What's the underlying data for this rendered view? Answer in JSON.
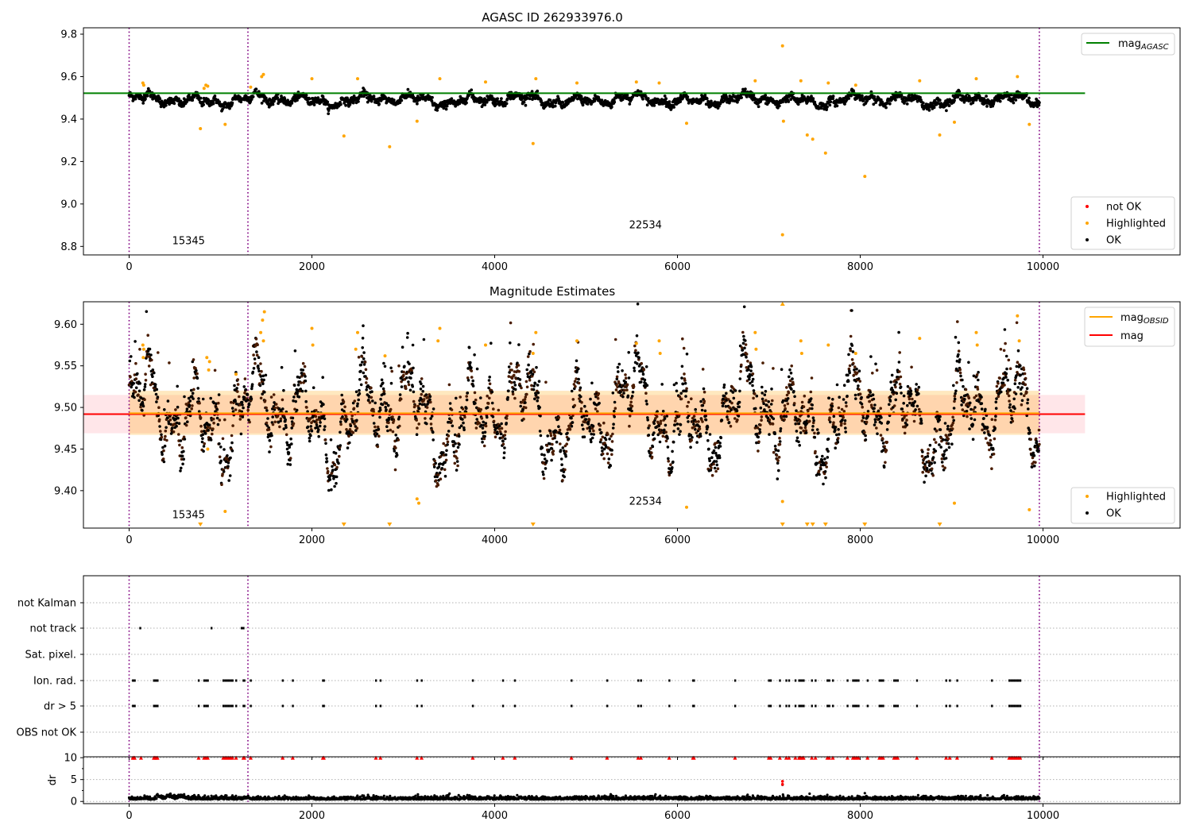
{
  "chart_data": [
    {
      "type": "scatter",
      "title": "AGASC ID 262933976.0",
      "xlim": [
        -500,
        11500
      ],
      "ylim": [
        8.76,
        9.83
      ],
      "x_ticks": [
        "0",
        "2000",
        "4000",
        "6000",
        "8000",
        "10000"
      ],
      "y_ticks": [
        "8.8",
        "9.0",
        "9.2",
        "9.4",
        "9.6",
        "9.8"
      ],
      "obsid_boundaries": [
        0,
        1300,
        9960
      ],
      "obsid_labels": [
        {
          "text": "15345",
          "x": 650,
          "y": 8.81
        },
        {
          "text": "22534",
          "x": 5650,
          "y": 8.885
        }
      ],
      "reference_line": {
        "name": "mag_AGASC",
        "y": 9.522,
        "x_range": [
          -500,
          10460
        ],
        "color": "#008000"
      },
      "series": [
        {
          "name": "not OK",
          "color": "#ff0000",
          "count": 0
        },
        {
          "name": "Highlighted",
          "color": "#ffa500",
          "points": [
            [
              150,
              9.57
            ],
            [
              160,
              9.56
            ],
            [
              780,
              9.355
            ],
            [
              820,
              9.545
            ],
            [
              840,
              9.56
            ],
            [
              860,
              9.555
            ],
            [
              1050,
              9.375
            ],
            [
              1330,
              9.55
            ],
            [
              1450,
              9.6
            ],
            [
              1470,
              9.61
            ],
            [
              2000,
              9.59
            ],
            [
              2350,
              9.32
            ],
            [
              2500,
              9.59
            ],
            [
              2850,
              9.27
            ],
            [
              3150,
              9.39
            ],
            [
              3400,
              9.59
            ],
            [
              3900,
              9.575
            ],
            [
              4420,
              9.285
            ],
            [
              4450,
              9.59
            ],
            [
              4900,
              9.57
            ],
            [
              5550,
              9.575
            ],
            [
              5800,
              9.57
            ],
            [
              6100,
              9.38
            ],
            [
              6850,
              9.58
            ],
            [
              7150,
              9.745
            ],
            [
              7150,
              8.855
            ],
            [
              7160,
              9.39
            ],
            [
              7350,
              9.58
            ],
            [
              7420,
              9.325
            ],
            [
              7480,
              9.305
            ],
            [
              7620,
              9.24
            ],
            [
              7650,
              9.57
            ],
            [
              7950,
              9.56
            ],
            [
              8050,
              9.13
            ],
            [
              8650,
              9.58
            ],
            [
              8870,
              9.325
            ],
            [
              9030,
              9.385
            ],
            [
              9270,
              9.59
            ],
            [
              9720,
              9.6
            ],
            [
              9850,
              9.375
            ]
          ]
        },
        {
          "name": "OK",
          "color": "#000000",
          "x_range": [
            0,
            9960
          ],
          "y_center": 9.49,
          "y_spread": 0.04
        }
      ],
      "legends": [
        {
          "position": "upper right",
          "entries": [
            "mag_AGASC"
          ]
        },
        {
          "position": "lower right",
          "entries": [
            "not OK",
            "Highlighted",
            "OK"
          ]
        }
      ]
    },
    {
      "type": "scatter",
      "title": "Magnitude Estimates",
      "xlim": [
        -500,
        11500
      ],
      "ylim": [
        9.355,
        9.627
      ],
      "x_ticks": [
        "0",
        "2000",
        "4000",
        "6000",
        "8000",
        "10000"
      ],
      "y_ticks": [
        "9.40",
        "9.45",
        "9.50",
        "9.55",
        "9.60"
      ],
      "obsid_boundaries": [
        0,
        1300,
        9960
      ],
      "obsid_labels": [
        {
          "text": "15345",
          "x": 650,
          "y": 9.367
        },
        {
          "text": "22534",
          "x": 5650,
          "y": 9.383
        }
      ],
      "bands": [
        {
          "y_range": [
            9.469,
            9.515
          ],
          "x_range": [
            -500,
            10460
          ],
          "color": "#ffb6c1",
          "opacity": 0.35
        },
        {
          "y_range": [
            9.467,
            9.52
          ],
          "x_range": [
            0,
            9960
          ],
          "color": "#ffa500",
          "opacity": 0.25
        }
      ],
      "reference_lines": [
        {
          "name": "mag",
          "y": 9.492,
          "x_range": [
            -500,
            10460
          ],
          "color": "#ff0000"
        },
        {
          "name": "mag_OBSID",
          "segments": [
            [
              0,
              1300,
              9.493
            ],
            [
              1300,
              9960,
              9.493
            ]
          ],
          "color": "#ffa500"
        }
      ],
      "series": [
        {
          "name": "Highlighted",
          "color": "#ffa500",
          "points": [
            [
              150,
              9.575
            ],
            [
              155,
              9.56
            ],
            [
              160,
              9.57
            ],
            [
              850,
              9.56
            ],
            [
              870,
              9.545
            ],
            [
              880,
              9.555
            ],
            [
              860,
              9.45
            ],
            [
              1050,
              9.375
            ],
            [
              1170,
              9.54
            ],
            [
              1440,
              9.59
            ],
            [
              1460,
              9.605
            ],
            [
              1480,
              9.615
            ],
            [
              1470,
              9.58
            ],
            [
              2000,
              9.595
            ],
            [
              2010,
              9.575
            ],
            [
              2500,
              9.59
            ],
            [
              2480,
              9.57
            ],
            [
              2800,
              9.562
            ],
            [
              3150,
              9.39
            ],
            [
              3170,
              9.385
            ],
            [
              3400,
              9.595
            ],
            [
              3380,
              9.58
            ],
            [
              3900,
              9.575
            ],
            [
              4450,
              9.59
            ],
            [
              4420,
              9.565
            ],
            [
              4900,
              9.58
            ],
            [
              5550,
              9.577
            ],
            [
              5800,
              9.58
            ],
            [
              5810,
              9.565
            ],
            [
              6100,
              9.38
            ],
            [
              6850,
              9.59
            ],
            [
              6860,
              9.57
            ],
            [
              7150,
              9.387
            ],
            [
              7350,
              9.58
            ],
            [
              7360,
              9.565
            ],
            [
              7650,
              9.575
            ],
            [
              7950,
              9.565
            ],
            [
              8650,
              9.583
            ],
            [
              9030,
              9.385
            ],
            [
              9270,
              9.59
            ],
            [
              9280,
              9.575
            ],
            [
              9720,
              9.61
            ],
            [
              9740,
              9.58
            ],
            [
              9850,
              9.377
            ]
          ]
        },
        {
          "name": "Highlighted (below axis)",
          "color": "#ffa500",
          "marker": "triangle-down",
          "x": [
            780,
            2350,
            2850,
            4420,
            7150,
            7420,
            7480,
            7620,
            8050,
            8870
          ]
        },
        {
          "name": "OK",
          "color": "#000000",
          "x_range": [
            0,
            9960
          ],
          "y_center": 9.49,
          "y_spread": 0.045
        }
      ],
      "legends": [
        {
          "position": "upper right",
          "entries": [
            "mag_OBSID",
            "mag"
          ]
        },
        {
          "position": "lower right",
          "entries": [
            "Highlighted",
            "OK"
          ]
        }
      ]
    },
    {
      "type": "scatter",
      "title": "",
      "xlim": [
        -500,
        11500
      ],
      "x_ticks": [
        "0",
        "2000",
        "4000",
        "6000",
        "8000",
        "10000"
      ],
      "categories": [
        "not Kalman",
        "not track",
        "Sat. pixel.",
        "Ion. rad.",
        "dr > 5",
        "OBS not OK"
      ],
      "obsid_boundaries": [
        0,
        1300,
        9960
      ],
      "flags": {
        "not Kalman": [],
        "not track": [
          120,
          900,
          1230,
          1240,
          1250
        ],
        "Sat. pixel.": [],
        "Ion. rad.": [
          40,
          50,
          60,
          270,
          280,
          290,
          300,
          310,
          760,
          820,
          840,
          860,
          1030,
          1050,
          1070,
          1090,
          1110,
          1130,
          1170,
          1250,
          1260,
          1330,
          1680,
          1790,
          2120,
          2130,
          2700,
          2750,
          3150,
          3200,
          3760,
          4090,
          4220,
          4840,
          5230,
          5570,
          5600,
          5910,
          6170,
          6180,
          6630,
          7000,
          7020,
          7120,
          7190,
          7220,
          7290,
          7330,
          7340,
          7350,
          7370,
          7380,
          7470,
          7510,
          7640,
          7660,
          7700,
          7860,
          7920,
          7940,
          7960,
          7980,
          8080,
          8210,
          8230,
          8250,
          8370,
          8390,
          8410,
          8620,
          8940,
          8980,
          9060,
          9440,
          9630,
          9650,
          9670,
          9690,
          9710,
          9730,
          9750
        ],
        "dr > 5": [
          40,
          50,
          60,
          270,
          280,
          290,
          300,
          310,
          760,
          820,
          840,
          860,
          1030,
          1050,
          1070,
          1090,
          1110,
          1130,
          1170,
          1250,
          1260,
          1330,
          1680,
          1790,
          2120,
          2130,
          2700,
          2750,
          3150,
          3200,
          3760,
          4090,
          4220,
          4840,
          5230,
          5570,
          5600,
          5910,
          6170,
          6180,
          6630,
          7000,
          7020,
          7120,
          7190,
          7220,
          7290,
          7330,
          7340,
          7350,
          7370,
          7380,
          7470,
          7510,
          7640,
          7660,
          7700,
          7860,
          7920,
          7940,
          7960,
          7980,
          8080,
          8210,
          8230,
          8250,
          8370,
          8390,
          8410,
          8620,
          8940,
          8980,
          9060,
          9440,
          9630,
          9650,
          9670,
          9690,
          9710,
          9730,
          9750
        ],
        "OBS not OK": []
      }
    },
    {
      "type": "scatter",
      "title": "",
      "ylabel": "dr",
      "xlim": [
        -500,
        11500
      ],
      "ylim": [
        -0.5,
        10.2
      ],
      "x_ticks": [
        "0",
        "2000",
        "4000",
        "6000",
        "8000",
        "10000"
      ],
      "y_ticks": [
        "0",
        "5",
        "10"
      ],
      "obsid_boundaries": [
        0,
        1300,
        9960
      ],
      "series": [
        {
          "name": "dr",
          "color": "#000000",
          "x_range": [
            0,
            9960
          ],
          "y_center": 0.45,
          "y_spread": 0.35
        },
        {
          "name": "dr outliers",
          "color": "#000000",
          "points": [
            [
              1640,
              1.2
            ],
            [
              3160,
              1.6
            ],
            [
              5300,
              1.2
            ],
            [
              5810,
              1.3
            ],
            [
              7150,
              3.8
            ],
            [
              7640,
              1.5
            ],
            [
              8050,
              1.9
            ],
            [
              8350,
              1.1
            ]
          ]
        },
        {
          "name": "dr > 10 (clipped)",
          "color": "#ff0000",
          "marker": "triangle-up",
          "x": [
            40,
            50,
            60,
            130,
            270,
            280,
            290,
            300,
            310,
            760,
            820,
            840,
            860,
            1030,
            1050,
            1070,
            1090,
            1110,
            1130,
            1170,
            1250,
            1260,
            1330,
            1680,
            1790,
            2120,
            2130,
            2700,
            2750,
            3150,
            3200,
            3760,
            4090,
            4220,
            4840,
            5230,
            5570,
            5600,
            5910,
            6170,
            6180,
            6630,
            7000,
            7020,
            7120,
            7190,
            7220,
            7290,
            7330,
            7340,
            7350,
            7370,
            7380,
            7470,
            7510,
            7640,
            7660,
            7700,
            7860,
            7920,
            7940,
            7960,
            7980,
            8080,
            8210,
            8230,
            8250,
            8370,
            8390,
            8410,
            8620,
            8940,
            8980,
            9060,
            9440,
            9630,
            9650,
            9670,
            9690,
            9710,
            9730,
            9750
          ]
        },
        {
          "name": "dr red outliers",
          "color": "#ff0000",
          "points": [
            [
              7150,
              4.6
            ],
            [
              7150,
              3.9
            ]
          ]
        }
      ]
    }
  ]
}
